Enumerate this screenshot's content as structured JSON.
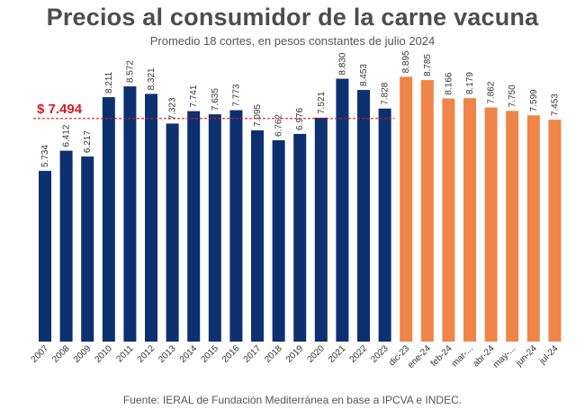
{
  "title": "Precios al consumidor de la carne vacuna",
  "subtitle": "Promedio 18 cortes, en pesos constantes de julio 2024",
  "source": "Fuente: IERAL de Fundación Mediterránea en base a IPCVA e INDEC.",
  "colors": {
    "annual": "#0d3070",
    "monthly": "#ef8548",
    "reference": "#d71920"
  },
  "chart_data": {
    "type": "bar",
    "title": "Precios al consumidor de la carne vacuna",
    "xlabel": "",
    "ylabel": "",
    "ylim": [
      0,
      9300
    ],
    "grid": false,
    "categories": [
      "2007",
      "2008",
      "2009",
      "2010",
      "2011",
      "2012",
      "2013",
      "2014",
      "2015",
      "2016",
      "2017",
      "2018",
      "2019",
      "2020",
      "2021",
      "2022",
      "2023",
      "dic-23",
      "ene-24",
      "feb-24",
      "mar-...",
      "abr-24",
      "may-...",
      "jun-24",
      "jul-24"
    ],
    "values": [
      5734,
      6412,
      6217,
      8211,
      8572,
      8321,
      7323,
      7741,
      7635,
      7773,
      7095,
      6762,
      6976,
      7521,
      8830,
      8453,
      7828,
      8895,
      8785,
      8166,
      8179,
      7862,
      7750,
      7599,
      7453
    ],
    "value_labels": [
      "5.734",
      "6.412",
      "6.217",
      "8.211",
      "8.572",
      "8.321",
      "7.323",
      "7.741",
      "7.635",
      "7.773",
      "7.095",
      "6.762",
      "6.976",
      "7.521",
      "8.830",
      "8.453",
      "7.828",
      "8.895",
      "8.785",
      "8.166",
      "8.179",
      "7.862",
      "7.750",
      "7.599",
      "7.453"
    ],
    "series_group": [
      "annual",
      "annual",
      "annual",
      "annual",
      "annual",
      "annual",
      "annual",
      "annual",
      "annual",
      "annual",
      "annual",
      "annual",
      "annual",
      "annual",
      "annual",
      "annual",
      "annual",
      "monthly",
      "monthly",
      "monthly",
      "monthly",
      "monthly",
      "monthly",
      "monthly",
      "monthly"
    ],
    "reference_line": {
      "value": 7494,
      "label": "$ 7.494",
      "span_categories": [
        0,
        16
      ]
    }
  }
}
